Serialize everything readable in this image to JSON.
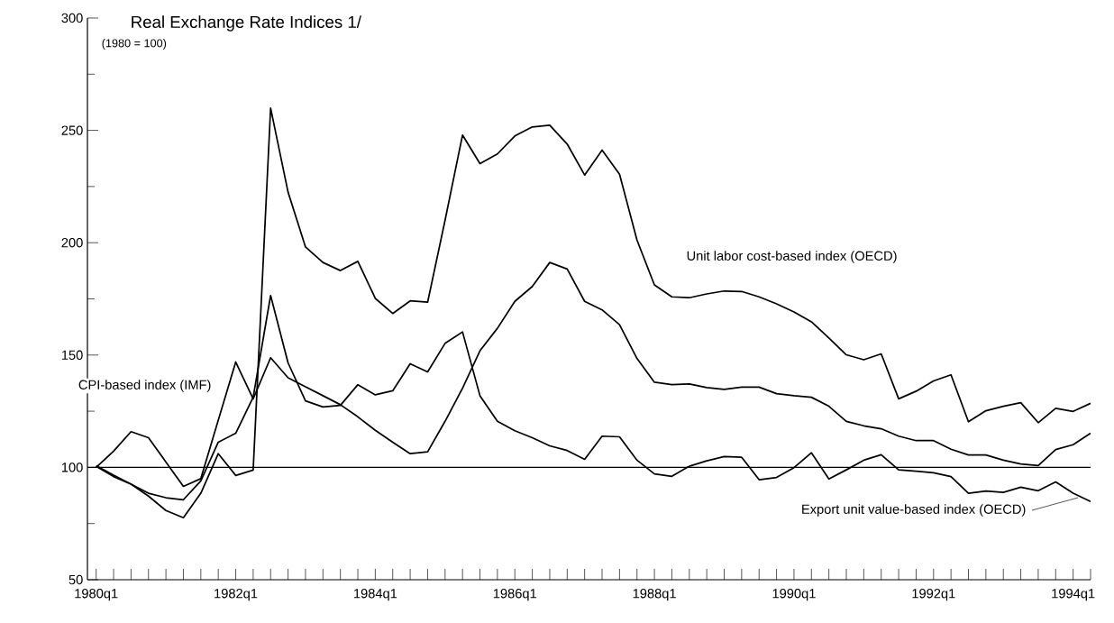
{
  "chart_data": {
    "type": "line",
    "title": "Real Exchange Rate Indices 1/",
    "subtitle": "(1980 = 100)",
    "categories": [
      "1980q1",
      null,
      null,
      null,
      null,
      null,
      null,
      null,
      "1982q1",
      null,
      null,
      null,
      null,
      null,
      null,
      null,
      "1984q1",
      null,
      null,
      null,
      null,
      null,
      null,
      null,
      "1986q1",
      null,
      null,
      null,
      null,
      null,
      null,
      null,
      "1988q1",
      null,
      null,
      null,
      null,
      null,
      null,
      null,
      "1990q1",
      null,
      null,
      null,
      null,
      null,
      null,
      null,
      "1992q1",
      null,
      null,
      null,
      null,
      null,
      null,
      null,
      "1994q1",
      null
    ],
    "series": [
      {
        "name": "Unit labor cost-based index (OECD)",
        "color": "#000000",
        "values": [
          100.8,
          96.5,
          92.5,
          87.2,
          80.8,
          77.6,
          88.5,
          106.1,
          96.4,
          98.8,
          259.9,
          222.5,
          198.1,
          191.2,
          187.6,
          191.7,
          175.2,
          168.5,
          174.1,
          173.5,
          210,
          247.9,
          235.2,
          239.5,
          247.5,
          251.5,
          252.3,
          243.9,
          230.1,
          241.2,
          230.5,
          201.2,
          181.2,
          175.9,
          175.5,
          177.2,
          178.5,
          178.3,
          175.9,
          172.8,
          169.2,
          164.8,
          157.6,
          150.1,
          147.9,
          150.5,
          130.5,
          133.9,
          138.5,
          141.2,
          120.3,
          125.2,
          127.2,
          128.8,
          119.9,
          126.3,
          124.9,
          128.5
        ]
      },
      {
        "name": "CPI-based index (IMF)",
        "color": "#000000",
        "values": [
          100,
          107.2,
          115.9,
          113.2,
          102.4,
          91.5,
          95,
          121,
          146.9,
          130.5,
          148.8,
          139.9,
          135.9,
          131.9,
          127.9,
          122.5,
          116.5,
          111.2,
          106.1,
          106.9,
          120.5,
          135.2,
          151.9,
          161.9,
          173.9,
          180.5,
          191.2,
          188.3,
          173.9,
          170.1,
          163.5,
          148.5,
          137.9,
          136.8,
          137.1,
          135.5,
          134.7,
          135.7,
          135.7,
          132.8,
          131.9,
          131.2,
          127.2,
          120.5,
          118.5,
          117.2,
          113.9,
          111.9,
          111.9,
          108.1,
          105.5,
          105.5,
          103.2,
          101.5,
          100.8,
          107.9,
          110.1,
          115.2
        ]
      },
      {
        "name": "Export unit value-based index (OECD)",
        "color": "#000000",
        "values": [
          100.5,
          95.9,
          92.5,
          88.5,
          86.5,
          85.6,
          94,
          111.2,
          115.2,
          131.2,
          176.5,
          146.5,
          129.6,
          126.9,
          127.6,
          136.8,
          132.3,
          134.1,
          146.1,
          142.5,
          155.2,
          160.3,
          131.9,
          120.5,
          116.3,
          113.2,
          109.6,
          107.5,
          103.6,
          113.9,
          113.6,
          103.2,
          97.1,
          96,
          100.5,
          102.9,
          104.8,
          104.5,
          94.5,
          95.5,
          99.9,
          106.5,
          94.8,
          98.9,
          103.2,
          105.6,
          98.9,
          98.3,
          97.6,
          95.9,
          88.5,
          89.5,
          88.9,
          91.2,
          89.6,
          93.5,
          88.5,
          84.8
        ]
      }
    ],
    "ylim": [
      50,
      300
    ],
    "yticks": [
      50,
      100,
      150,
      200,
      250,
      300
    ],
    "ref_lines": [
      {
        "axis": "y",
        "value": 100,
        "color": "#000000"
      }
    ]
  }
}
